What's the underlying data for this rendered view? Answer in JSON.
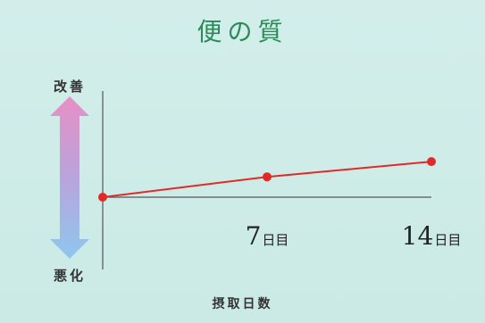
{
  "chart_data": {
    "type": "line",
    "title": "便の質",
    "xlabel": "摂取日数",
    "ylabel_top": "改善",
    "ylabel_bottom": "悪化",
    "x_ticks": [
      {
        "num": "7",
        "unit": "日目"
      },
      {
        "num": "14",
        "unit": "日目"
      }
    ],
    "x": [
      0,
      7,
      14
    ],
    "series": [
      {
        "values": [
          0,
          1.2,
          2.1
        ]
      }
    ],
    "xlim": [
      0,
      14
    ],
    "ylim": [
      -4,
      4
    ],
    "grid": false,
    "colors": {
      "line": "#e02a2a",
      "arrow_top": "#e78fc4",
      "arrow_bottom": "#8ec7ee",
      "title": "#2e8a5a"
    }
  }
}
